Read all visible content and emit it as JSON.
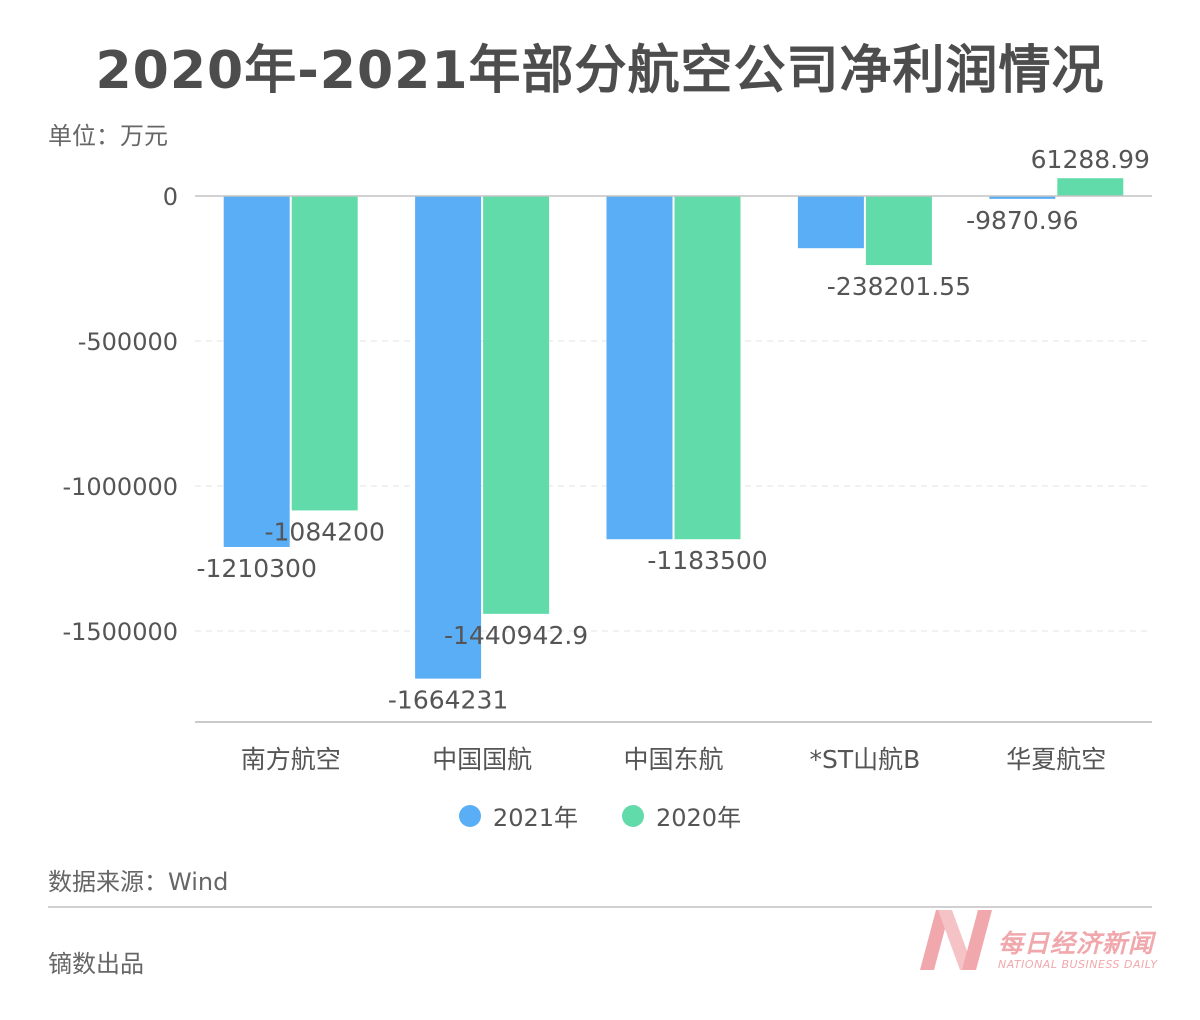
{
  "title": "2020年-2021年部分航空公司净利润情况",
  "unit_label": "单位：万元",
  "source": "数据来源：Wind",
  "producer": "镝数出品",
  "logo": {
    "cn": "每日经济新闻",
    "en": "NATIONAL BUSINESS DAILY"
  },
  "colors": {
    "series_2021": "#5aaef5",
    "series_2020": "#62dbab",
    "logo": "#f0a8ac"
  },
  "chart_data": {
    "type": "bar",
    "categories": [
      "南方航空",
      "中国国航",
      "中国东航",
      "*ST山航B",
      "华夏航空"
    ],
    "series": [
      {
        "name": "2021年",
        "values": [
          -1210300,
          -1664231,
          -1183500,
          -180000,
          -9870.96
        ],
        "labels": [
          "-1210300",
          "-1664231",
          "",
          "",
          "-9870.96"
        ]
      },
      {
        "name": "2020年",
        "values": [
          -1084200,
          -1440942.9,
          -1183500,
          -238201.55,
          61288.99
        ],
        "labels": [
          "-1084200",
          "-1440942.9",
          "-1183500",
          "-238201.55",
          "61288.99"
        ]
      }
    ],
    "yticks": [
      0,
      -500000,
      -1000000,
      -1500000
    ],
    "ytick_labels": [
      "0",
      "-500000",
      "-1000000",
      "-1500000"
    ],
    "ylim": [
      -1830000,
      100000
    ],
    "grid": true,
    "legend_position": "bottom"
  }
}
